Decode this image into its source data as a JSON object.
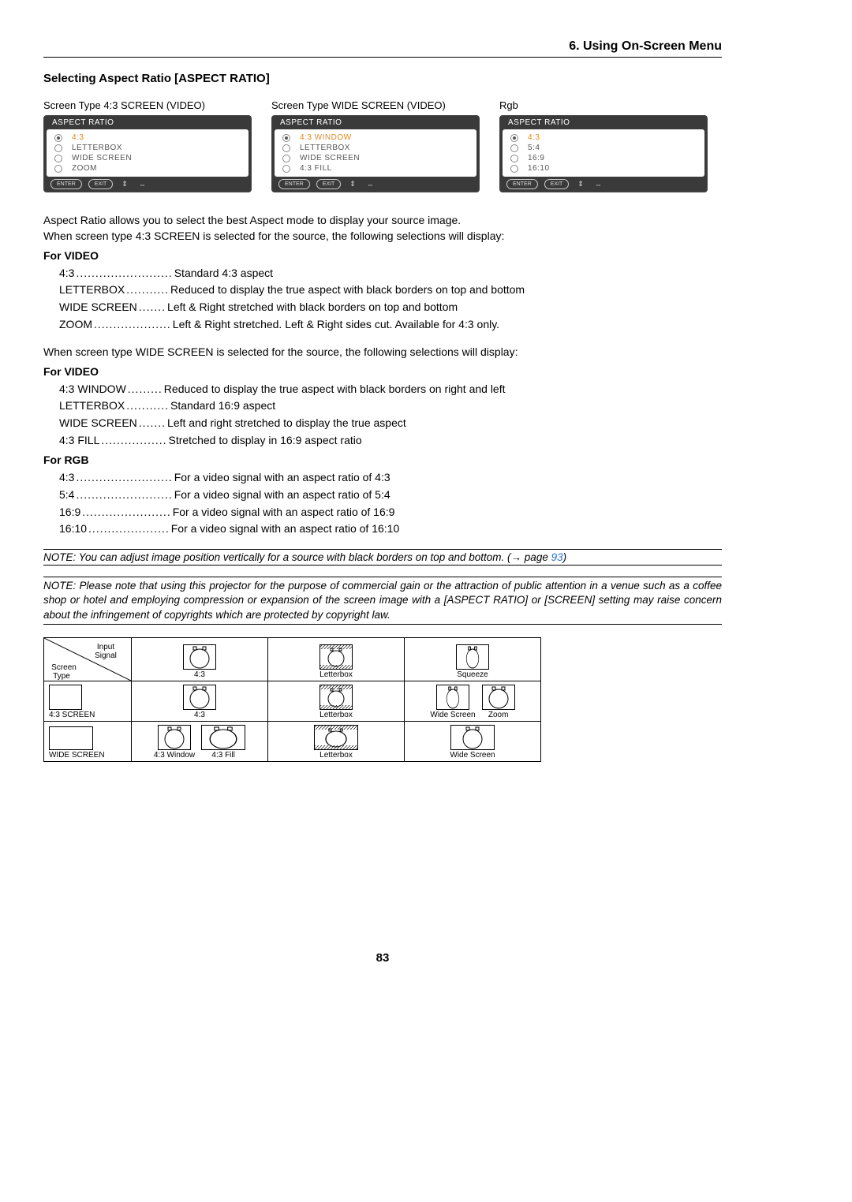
{
  "chapter": "6. Using On-Screen Menu",
  "section_title": "Selecting Aspect Ratio [ASPECT RATIO]",
  "page_number": "83",
  "panels": [
    {
      "label": "Screen Type 4:3 SCREEN (VIDEO)",
      "title": "ASPECT RATIO",
      "items": [
        "4:3",
        "LETTERBOX",
        "WIDE SCREEN",
        "ZOOM"
      ],
      "selected": 0
    },
    {
      "label": "Screen Type WIDE SCREEN (VIDEO)",
      "title": "ASPECT RATIO",
      "items": [
        "4:3 WINDOW",
        "LETTERBOX",
        "WIDE SCREEN",
        "4:3 FILL"
      ],
      "selected": 0
    },
    {
      "label": "Rgb",
      "title": "ASPECT RATIO",
      "items": [
        "4:3",
        "5:4",
        "16:9",
        "16:10"
      ],
      "selected": 0
    }
  ],
  "footer_buttons": {
    "enter": "ENTER",
    "exit": "EXIT"
  },
  "intro_lines": [
    "Aspect Ratio allows you to select the best Aspect mode to display your source image.",
    "When screen type 4:3 SCREEN is selected for the source, the following selections will display:"
  ],
  "video43_heading": "For VIDEO",
  "video43": [
    {
      "term": "4:3",
      "dots": ".........................",
      "desc": "Standard 4:3 aspect"
    },
    {
      "term": "LETTERBOX",
      "dots": "...........",
      "desc": "Reduced to display the true aspect with black borders on top and bottom"
    },
    {
      "term": "WIDE SCREEN",
      "dots": ".......",
      "desc": "Left & Right stretched with black borders on top and bottom"
    },
    {
      "term": "ZOOM",
      "dots": "....................",
      "desc": "Left & Right stretched. Left & Right sides cut. Available for 4:3 only."
    }
  ],
  "wide_intro": "When screen type WIDE SCREEN is selected for the source, the following selections will display:",
  "videoWide_heading": "For VIDEO",
  "videoWide": [
    {
      "term": "4:3 WINDOW",
      "dots": ".........",
      "desc": "Reduced to display the true aspect with black borders on right and left"
    },
    {
      "term": "LETTERBOX",
      "dots": "...........",
      "desc": "Standard 16:9 aspect"
    },
    {
      "term": "WIDE SCREEN",
      "dots": ".......",
      "desc": "Left and right stretched to display the true aspect"
    },
    {
      "term": "4:3 FILL",
      "dots": ".................",
      "desc": "Stretched to display in 16:9 aspect ratio"
    }
  ],
  "rgb_heading": "For RGB",
  "rgb": [
    {
      "term": "4:3",
      "dots": ".........................",
      "desc": "For a video signal with an aspect ratio of 4:3"
    },
    {
      "term": "5:4",
      "dots": ".........................",
      "desc": "For a video signal with an aspect ratio of 5:4"
    },
    {
      "term": "16:9",
      "dots": ".......................",
      "desc": "For a video signal with an aspect ratio of 16:9"
    },
    {
      "term": "16:10",
      "dots": ".....................",
      "desc": "For a video signal with an aspect ratio of 16:10"
    }
  ],
  "note1_pre": "NOTE: You can adjust image position vertically for a source with black borders on top and bottom. (→ page ",
  "note1_page": "93",
  "note1_post": ")",
  "note2": "NOTE: Please note that using this projector for the purpose of commercial gain or the attraction of public attention in a venue such as a coffee shop or hotel and employing compression or expansion of the screen image with a [ASPECT RATIO] or [SCREEN] setting may raise concern about the infringement of copyrights which are protected by copyright law.",
  "table": {
    "hdr_diag": {
      "tl": "Screen\nType",
      "tr": "Input\nSignal"
    },
    "cols": [
      {
        "items": [
          {
            "shape": "4:3",
            "label": "4:3"
          }
        ]
      },
      {
        "items": [
          {
            "shape": "lb",
            "label": "Letterbox"
          }
        ]
      },
      {
        "items": [
          {
            "shape": "sq",
            "label": "Squeeze"
          }
        ]
      }
    ],
    "rows": [
      {
        "hdr": {
          "shape": "4:3-frame",
          "label": "4:3 SCREEN"
        },
        "cells": [
          {
            "items": [
              {
                "shape": "4:3",
                "label": "4:3"
              }
            ]
          },
          {
            "items": [
              {
                "shape": "lb",
                "label": "Letterbox"
              }
            ]
          },
          {
            "items": [
              {
                "shape": "sq",
                "label": "Wide Screen"
              },
              {
                "shape": "4:3",
                "label": "Zoom"
              }
            ]
          }
        ]
      },
      {
        "hdr": {
          "shape": "wide-frame",
          "label": "WIDE SCREEN"
        },
        "cells": [
          {
            "items": [
              {
                "shape": "4:3",
                "label": "4:3 Window"
              },
              {
                "shape": "wstr",
                "label": "4:3 Fill"
              }
            ]
          },
          {
            "items": [
              {
                "shape": "wlb",
                "label": "Letterbox"
              }
            ]
          },
          {
            "items": [
              {
                "shape": "wide",
                "label": "Wide Screen"
              }
            ]
          }
        ]
      }
    ]
  }
}
